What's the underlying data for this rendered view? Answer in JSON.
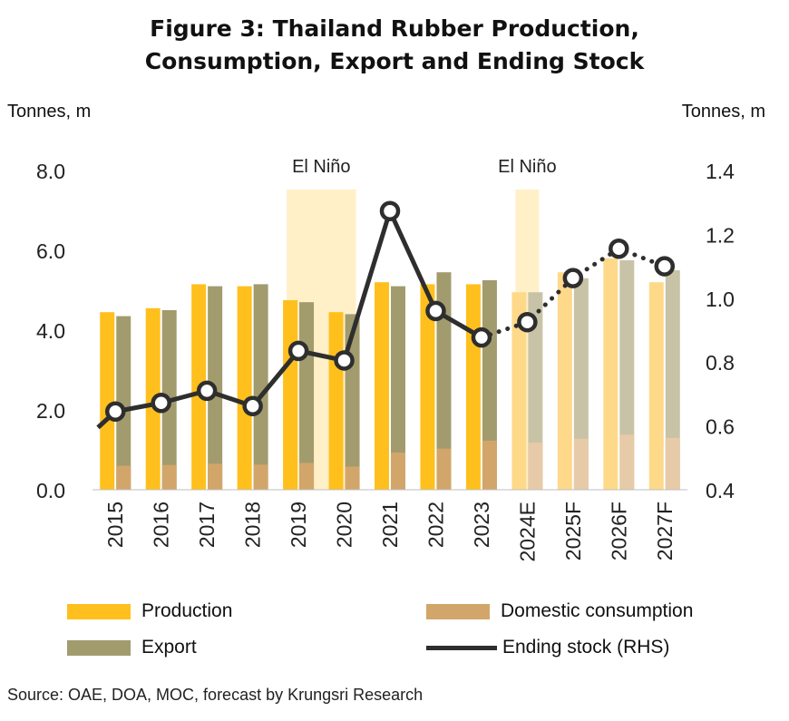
{
  "title_lines": [
    "Figure 3: Thailand Rubber Production,",
    "Consumption, Export and Ending Stock"
  ],
  "source": "Source: OAE, DOA, MOC, forecast by Krungsri Research",
  "colors": {
    "production": "#FFC01E",
    "domestic": "#D2A66A",
    "export": "#A29B6E",
    "ending_stock": "#2E2E2E",
    "el_nino_band": "#FFF0C8",
    "forecast_production": "#FFD98A",
    "forecast_domestic": "#E7CBA8",
    "forecast_export": "#C8C3A6"
  },
  "legend": {
    "production": "Production",
    "domestic": "Domestic consumption",
    "export": "Export",
    "ending_stock": "Ending stock (RHS)"
  },
  "chart_data": {
    "type": "bar",
    "title": "Figure 3: Thailand Rubber Production, Consumption, Export and Ending Stock",
    "ylabel": "Tonnes, m",
    "y2label": "Tonnes, m",
    "ylim": [
      0,
      8
    ],
    "yticks": [
      "0.0",
      "2.0",
      "4.0",
      "6.0",
      "8.0"
    ],
    "y2lim": [
      0.4,
      1.4
    ],
    "y2ticks": [
      "0.4",
      "0.6",
      "0.8",
      "1.0",
      "1.2",
      "1.4"
    ],
    "categories": [
      "2015",
      "2016",
      "2017",
      "2018",
      "2019",
      "2020",
      "2021",
      "2022",
      "2023",
      "2024E",
      "2025F",
      "2026F",
      "2027F"
    ],
    "forecast_from_index": 9,
    "annotations": [
      {
        "text": "El Niño",
        "from_category": "2019",
        "to_category": "2020"
      },
      {
        "text": "El Niño",
        "from_category": "2024E",
        "to_category": "2024E"
      }
    ],
    "series": [
      {
        "name": "Production",
        "type": "bar",
        "values": [
          4.45,
          4.55,
          5.15,
          5.1,
          4.75,
          4.45,
          5.2,
          5.15,
          5.15,
          4.95,
          5.45,
          5.8,
          5.2
        ]
      },
      {
        "name": "Export",
        "type": "bar",
        "values": [
          4.35,
          4.5,
          5.1,
          5.15,
          4.7,
          4.4,
          5.1,
          5.45,
          5.25,
          4.95,
          5.3,
          5.75,
          5.5
        ]
      },
      {
        "name": "Domestic consumption",
        "type": "bar",
        "values": [
          0.6,
          0.62,
          0.65,
          0.63,
          0.67,
          0.58,
          0.93,
          1.03,
          1.23,
          1.18,
          1.28,
          1.38,
          1.3
        ]
      },
      {
        "name": "Ending stock (RHS)",
        "type": "line",
        "axis": "right",
        "values": [
          0.645,
          0.672,
          0.71,
          0.662,
          0.835,
          0.805,
          1.273,
          0.96,
          0.877,
          0.925,
          1.063,
          1.155,
          1.1
        ],
        "start_value": 0.595
      }
    ]
  }
}
